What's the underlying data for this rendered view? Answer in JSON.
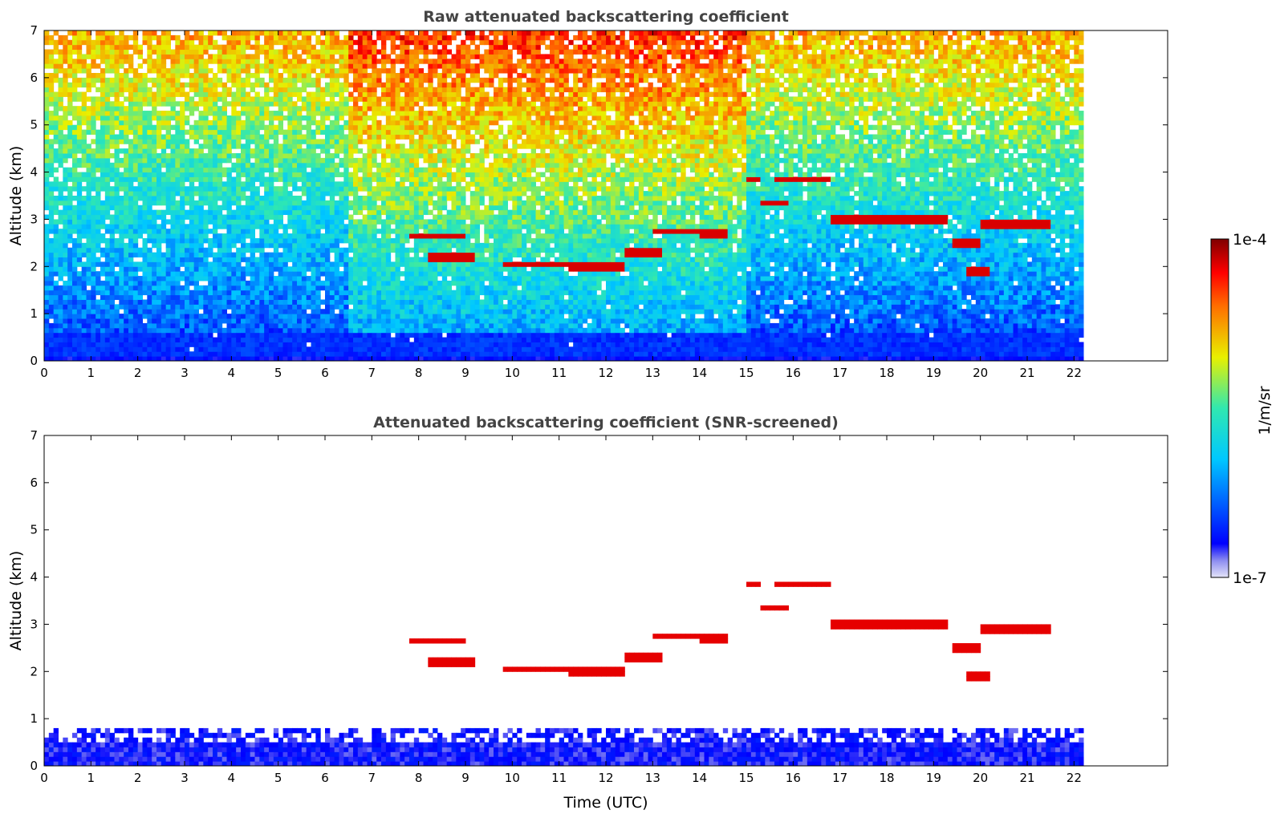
{
  "chart_data": [
    {
      "type": "heatmap",
      "title": "Raw attenuated backscattering coefficient",
      "xlabel": "",
      "ylabel": "Altitude (km)",
      "xlim": [
        0,
        24
      ],
      "ylim": [
        0,
        7
      ],
      "x_ticks": [
        0,
        1,
        2,
        3,
        4,
        5,
        6,
        7,
        8,
        9,
        10,
        11,
        12,
        13,
        14,
        15,
        16,
        17,
        18,
        19,
        20,
        21,
        22
      ],
      "y_ticks": [
        0,
        1,
        2,
        3,
        4,
        5,
        6,
        7
      ],
      "data_extent_x": [
        0,
        22.2
      ],
      "screened": false,
      "cloud_layers": [
        {
          "x": [
            7.8,
            9.0
          ],
          "alt": 2.65
        },
        {
          "x": [
            8.2,
            9.2
          ],
          "alt": 2.2
        },
        {
          "x": [
            9.8,
            11.2
          ],
          "alt": 2.05
        },
        {
          "x": [
            11.2,
            12.4
          ],
          "alt": 2.0
        },
        {
          "x": [
            12.4,
            13.2
          ],
          "alt": 2.3
        },
        {
          "x": [
            13.0,
            14.0
          ],
          "alt": 2.75
        },
        {
          "x": [
            14.0,
            14.6
          ],
          "alt": 2.7
        },
        {
          "x": [
            15.0,
            15.3
          ],
          "alt": 3.85
        },
        {
          "x": [
            15.6,
            16.8
          ],
          "alt": 3.85
        },
        {
          "x": [
            15.3,
            15.9
          ],
          "alt": 3.35
        },
        {
          "x": [
            16.8,
            17.5
          ],
          "alt": 3.0
        },
        {
          "x": [
            17.5,
            19.3
          ],
          "alt": 3.0
        },
        {
          "x": [
            19.4,
            20.0
          ],
          "alt": 2.5
        },
        {
          "x": [
            20.0,
            21.5
          ],
          "alt": 2.9
        },
        {
          "x": [
            19.7,
            20.2
          ],
          "alt": 1.9
        }
      ]
    },
    {
      "type": "heatmap",
      "title": "Attenuated backscattering coefficient (SNR-screened)",
      "xlabel": "Time (UTC)",
      "ylabel": "Altitude (km)",
      "xlim": [
        0,
        24
      ],
      "ylim": [
        0,
        7
      ],
      "x_ticks": [
        0,
        1,
        2,
        3,
        4,
        5,
        6,
        7,
        8,
        9,
        10,
        11,
        12,
        13,
        14,
        15,
        16,
        17,
        18,
        19,
        20,
        21,
        22
      ],
      "y_ticks": [
        0,
        1,
        2,
        3,
        4,
        5,
        6,
        7
      ],
      "data_extent_x": [
        0,
        22.2
      ],
      "screened": true,
      "boundary_layer_top_km": 0.8
    }
  ],
  "colorbar": {
    "label": "1/m/sr",
    "min_label": "1e-7",
    "max_label": "1e-4",
    "scale": "log",
    "colormap": "jet"
  }
}
